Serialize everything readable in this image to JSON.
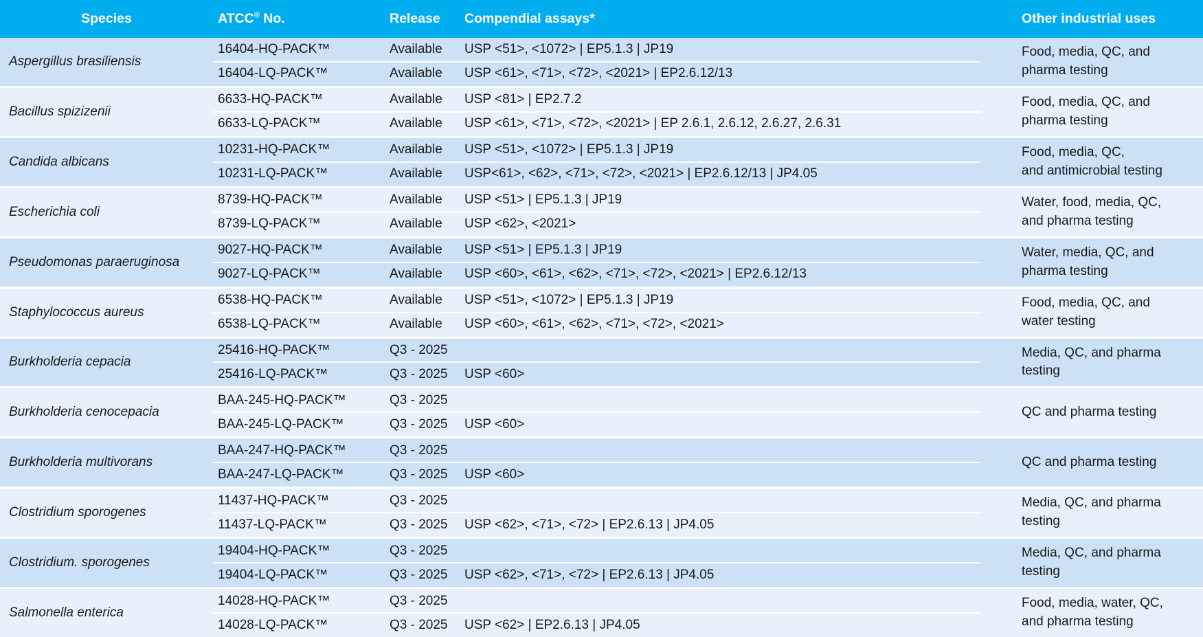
{
  "header": {
    "species": "Species",
    "atcc_prefix": "ATCC",
    "atcc_reg": "®",
    "atcc_suffix": " No.",
    "release": "Release",
    "assays": "Compendial assays*",
    "other": "Other industrial uses"
  },
  "colors": {
    "header_bg": "#00ADEE",
    "header_text": "#FFFFFF",
    "group_shade_dark": "#CCE1F6",
    "group_shade_light": "#E8F1FB",
    "body_text": "#1A1A1A",
    "divider": "#FFFFFF"
  },
  "table": {
    "groups": [
      {
        "species": "Aspergillus brasiliensis",
        "rows": [
          {
            "atcc": "16404-HQ-PACK™",
            "release": "Available",
            "assays": "USP <51>, <1072> | EP5.1.3 | JP19"
          },
          {
            "atcc": "16404-LQ-PACK™",
            "release": "Available",
            "assays": "USP <61>, <71>, <72>, <2021> | EP2.6.12/13"
          }
        ],
        "uses_lines": [
          "Food, media, QC, and",
          "pharma testing"
        ]
      },
      {
        "species": "Bacillus spizizenii",
        "rows": [
          {
            "atcc": "6633-HQ-PACK™",
            "release": "Available",
            "assays": "USP <81> | EP2.7.2"
          },
          {
            "atcc": "6633-LQ-PACK™",
            "release": "Available",
            "assays": "USP <61>, <71>, <72>, <2021> | EP 2.6.1, 2.6.12, 2.6.27, 2.6.31"
          }
        ],
        "uses_lines": [
          "Food, media, QC, and",
          "pharma testing"
        ]
      },
      {
        "species": "Candida albicans",
        "rows": [
          {
            "atcc": "10231-HQ-PACK™",
            "release": "Available",
            "assays": "USP <51>, <1072> | EP5.1.3 | JP19"
          },
          {
            "atcc": "10231-LQ-PACK™",
            "release": "Available",
            "assays": "USP<61>, <62>, <71>, <72>, <2021> | EP2.6.12/13 | JP4.05"
          }
        ],
        "uses_lines": [
          "Food, media, QC,",
          "and antimicrobial testing"
        ]
      },
      {
        "species": "Escherichia coli",
        "rows": [
          {
            "atcc": "8739-HQ-PACK™",
            "release": "Available",
            "assays": "USP <51> | EP5.1.3 | JP19"
          },
          {
            "atcc": "8739-LQ-PACK™",
            "release": "Available",
            "assays": "USP <62>, <2021>"
          }
        ],
        "uses_lines": [
          "Water, food, media, QC,",
          "and pharma testing"
        ]
      },
      {
        "species": "Pseudomonas paraeruginosa",
        "rows": [
          {
            "atcc": "9027-HQ-PACK™",
            "release": "Available",
            "assays": "USP <51> | EP5.1.3 | JP19"
          },
          {
            "atcc": "9027-LQ-PACK™",
            "release": "Available",
            "assays": "USP <60>, <61>, <62>, <71>, <72>, <2021> | EP2.6.12/13"
          }
        ],
        "uses_lines": [
          "Water, media, QC, and",
          "pharma testing"
        ]
      },
      {
        "species": "Staphylococcus aureus",
        "rows": [
          {
            "atcc": "6538-HQ-PACK™",
            "release": "Available",
            "assays": "USP <51>, <1072> | EP5.1.3 | JP19"
          },
          {
            "atcc": "6538-LQ-PACK™",
            "release": "Available",
            "assays": "USP <60>, <61>, <62>, <71>, <72>, <2021>"
          }
        ],
        "uses_lines": [
          "Food, media, QC, and",
          "water testing"
        ]
      },
      {
        "species": "Burkholderia cepacia",
        "rows": [
          {
            "atcc": "25416-HQ-PACK™",
            "release": "Q3 - 2025",
            "assays": ""
          },
          {
            "atcc": "25416-LQ-PACK™",
            "release": "Q3 - 2025",
            "assays": "USP <60>"
          }
        ],
        "uses_lines": [
          "Media, QC, and pharma",
          "testing"
        ]
      },
      {
        "species": "Burkholderia cenocepacia",
        "rows": [
          {
            "atcc": "BAA-245-HQ-PACK™",
            "release": "Q3 - 2025",
            "assays": ""
          },
          {
            "atcc": "BAA-245-LQ-PACK™",
            "release": "Q3 - 2025",
            "assays": "USP <60>"
          }
        ],
        "uses_lines": [
          "QC and pharma testing"
        ]
      },
      {
        "species": "Burkholderia multivorans",
        "rows": [
          {
            "atcc": "BAA-247-HQ-PACK™",
            "release": "Q3 - 2025",
            "assays": ""
          },
          {
            "atcc": "BAA-247-LQ-PACK™",
            "release": "Q3 - 2025",
            "assays": "USP <60>"
          }
        ],
        "uses_lines": [
          "QC and pharma testing"
        ]
      },
      {
        "species": "Clostridium sporogenes",
        "rows": [
          {
            "atcc": "11437-HQ-PACK™",
            "release": "Q3 - 2025",
            "assays": ""
          },
          {
            "atcc": "11437-LQ-PACK™",
            "release": "Q3 - 2025",
            "assays": "USP <62>, <71>, <72> | EP2.6.13 | JP4.05"
          }
        ],
        "uses_lines": [
          "Media, QC, and pharma",
          "testing"
        ]
      },
      {
        "species": "Clostridium. sporogenes",
        "rows": [
          {
            "atcc": "19404-HQ-PACK™",
            "release": "Q3 - 2025",
            "assays": ""
          },
          {
            "atcc": "19404-LQ-PACK™",
            "release": "Q3 - 2025",
            "assays": "USP <62>, <71>, <72> | EP2.6.13 | JP4.05"
          }
        ],
        "uses_lines": [
          "Media, QC, and pharma",
          "testing"
        ]
      },
      {
        "species": "Salmonella enterica",
        "rows": [
          {
            "atcc": "14028-HQ-PACK™",
            "release": "Q3 - 2025",
            "assays": ""
          },
          {
            "atcc": "14028-LQ-PACK™",
            "release": "Q3 - 2025",
            "assays": "USP <62> | EP2.6.13 | JP4.05"
          }
        ],
        "uses_lines": [
          "Food, media, water, QC,",
          "and pharma testing"
        ]
      }
    ]
  }
}
